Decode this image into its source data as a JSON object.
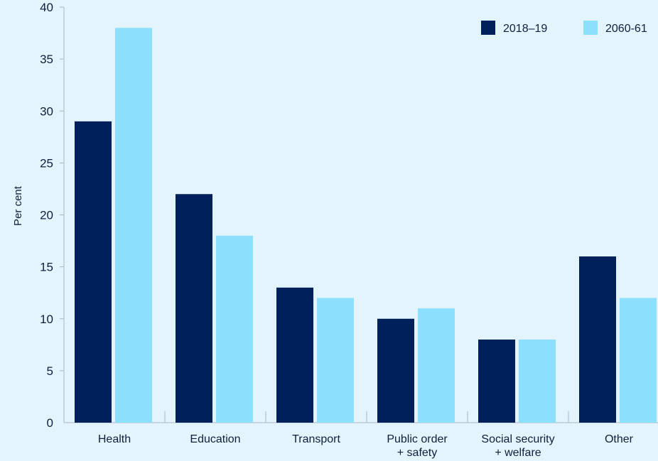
{
  "chart_data": {
    "type": "bar",
    "title": "",
    "xlabel": "",
    "ylabel": "Per cent",
    "ylim": [
      0,
      40
    ],
    "yticks": [
      0,
      5,
      10,
      15,
      20,
      25,
      30,
      35,
      40
    ],
    "grid": false,
    "legend_position": "top-right",
    "categories": [
      [
        "Health"
      ],
      [
        "Education"
      ],
      [
        "Transport"
      ],
      [
        "Public order",
        "+ safety"
      ],
      [
        "Social security",
        "+ welfare"
      ],
      [
        "Other"
      ]
    ],
    "series": [
      {
        "name": "2018–19",
        "color": "#00205b",
        "values": [
          29,
          22,
          13,
          10,
          8,
          16
        ]
      },
      {
        "name": "2060-61",
        "color": "#8ce0fd",
        "values": [
          38,
          18,
          12,
          11,
          8,
          12
        ]
      }
    ]
  },
  "style": {
    "background": "#e4f4fc",
    "axis_color": "#a9b6c2",
    "text_color": "#0f1f3d"
  }
}
